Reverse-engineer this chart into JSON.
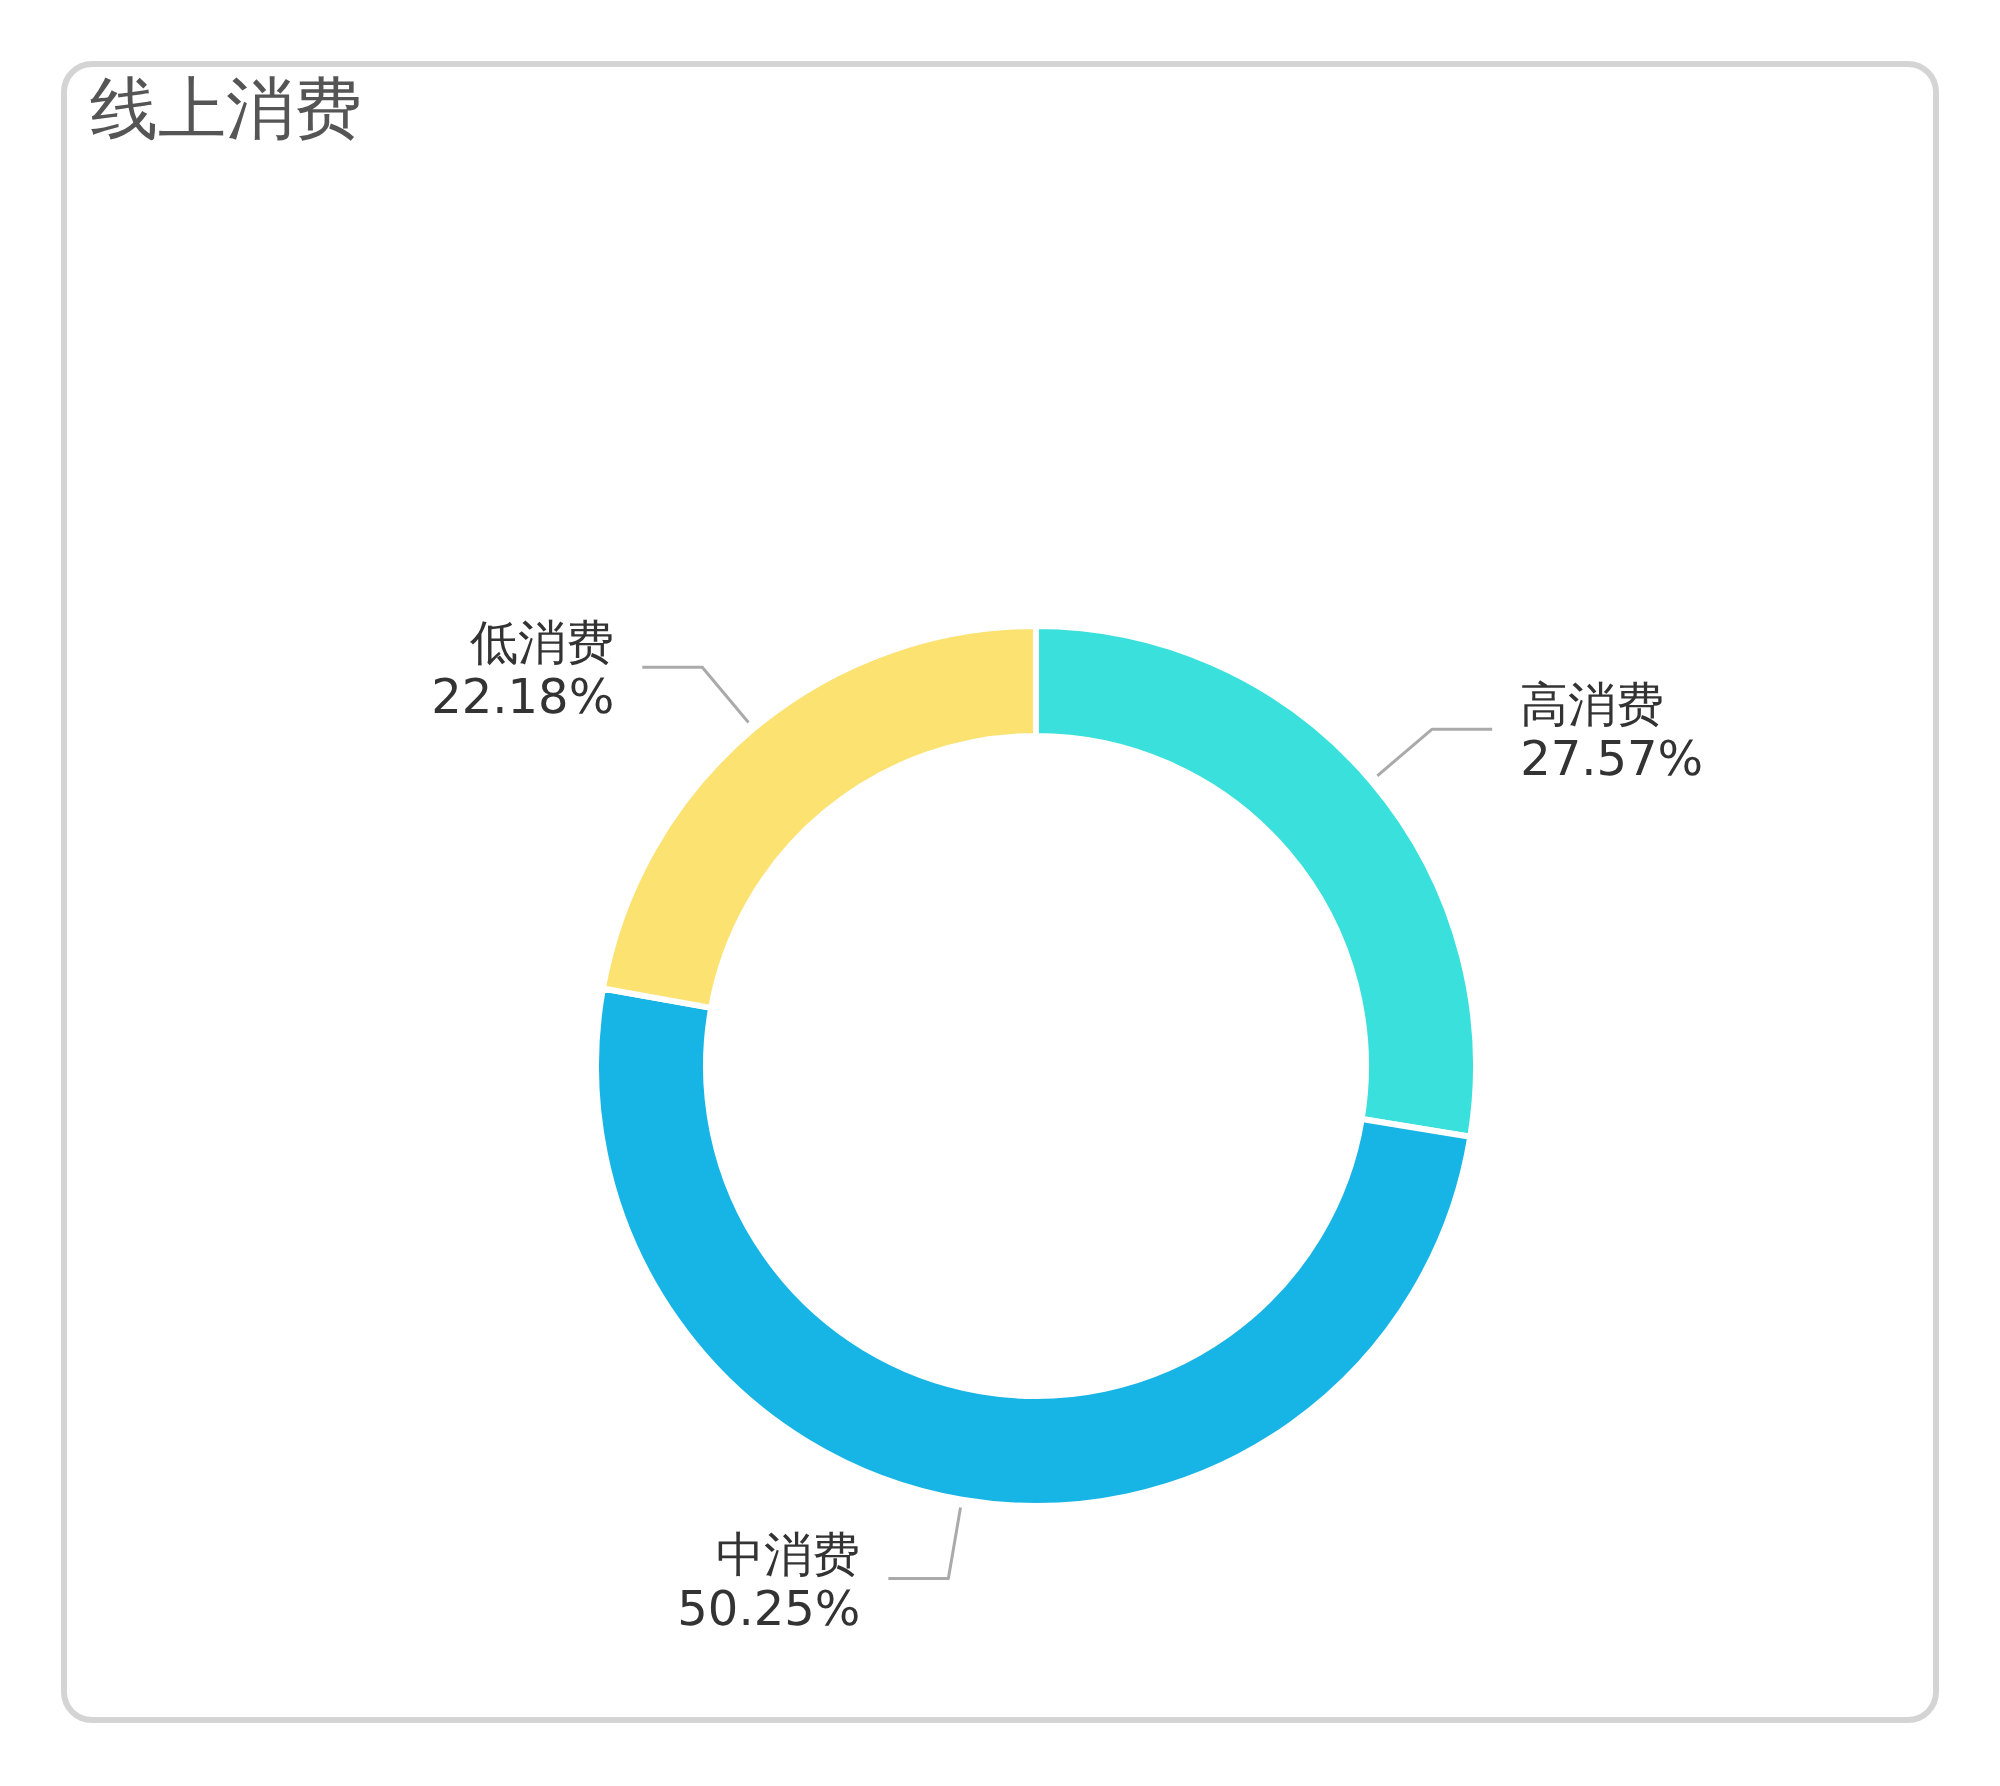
{
  "chart_data": {
    "type": "donut",
    "title": "线上消费",
    "categories": [
      "高消费",
      "中消费",
      "低消费"
    ],
    "values": [
      27.57,
      50.25,
      22.18
    ],
    "colors": [
      "#3ae0db",
      "#17b4e6",
      "#fbe271"
    ],
    "value_labels": [
      "27.57%",
      "50.25%",
      "22.18%"
    ]
  }
}
